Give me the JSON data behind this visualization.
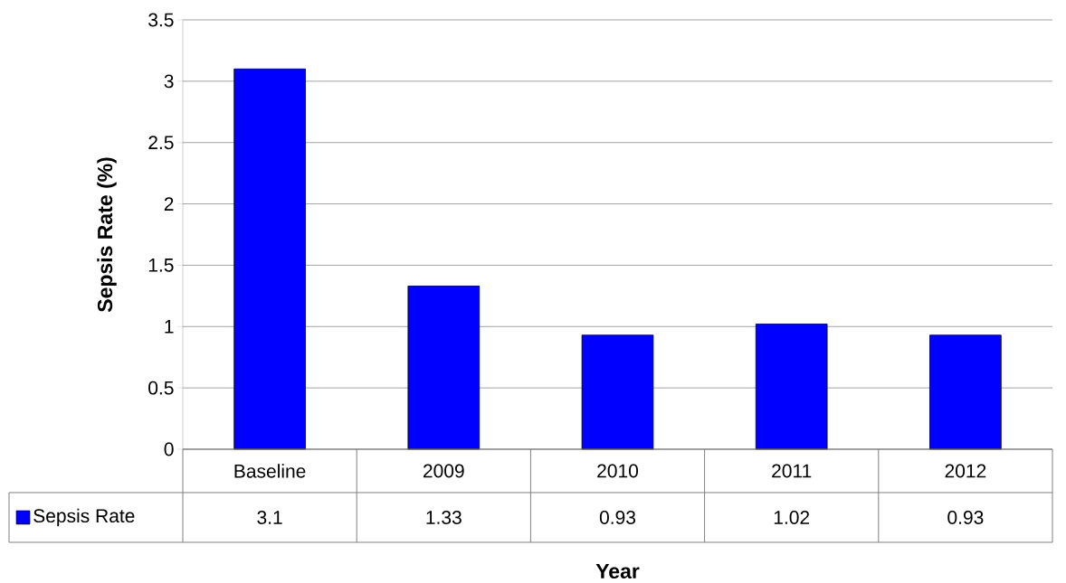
{
  "chart_data": {
    "type": "bar",
    "xlabel": "Year",
    "ylabel": "Sepsis Rate (%)",
    "categories": [
      "Baseline",
      "2009",
      "2010",
      "2011",
      "2012"
    ],
    "series": [
      {
        "name": "Sepsis Rate",
        "color": "#0000ff",
        "values": [
          3.1,
          1.33,
          0.93,
          1.02,
          0.93
        ]
      }
    ],
    "ylim": [
      0,
      3.5
    ],
    "yticks": [
      0,
      0.5,
      1,
      1.5,
      2,
      2.5,
      3,
      3.5
    ],
    "grid": "y",
    "data_labels": true,
    "legend": "bottom left"
  }
}
